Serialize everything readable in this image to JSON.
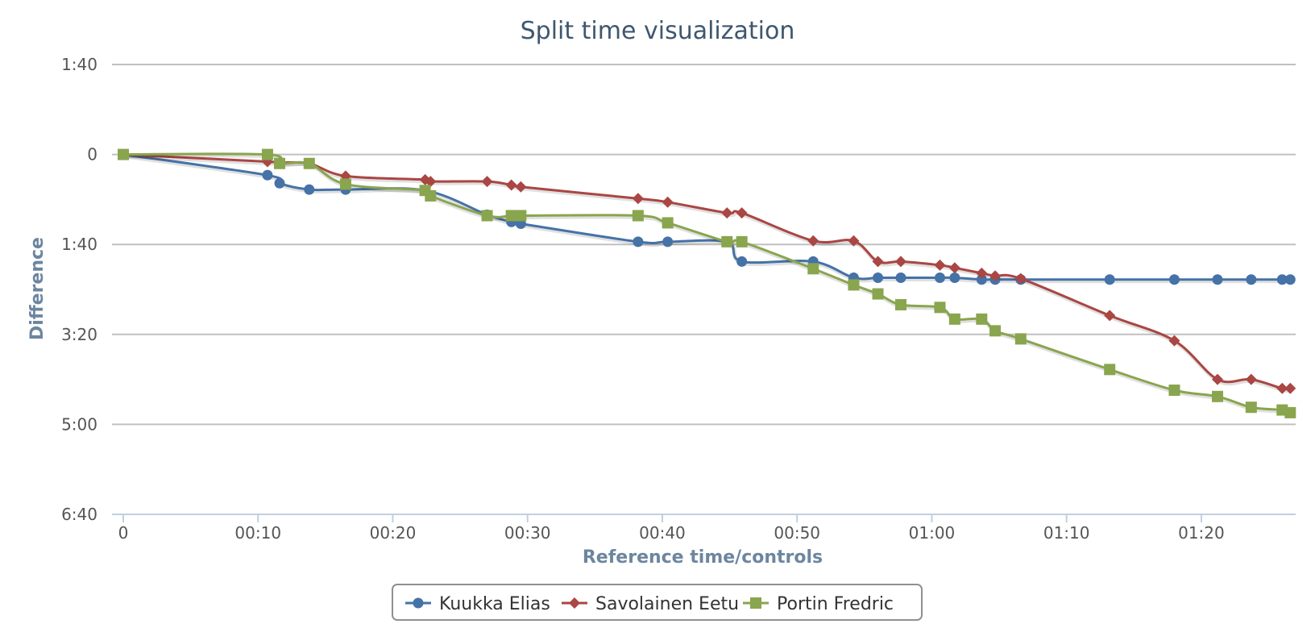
{
  "chart_data": {
    "type": "line",
    "title": "Split time visualization",
    "xlabel": "Reference time/controls",
    "ylabel": "Difference",
    "x_unit": "minutes",
    "y_unit": "seconds",
    "xlim": [
      0,
      87
    ],
    "ylim": [
      0,
      400
    ],
    "y_reversed": true,
    "grid": "horizontal",
    "legend_position": "bottom-center",
    "x_ticks": [
      {
        "value": 0,
        "label": "0"
      },
      {
        "value": 10,
        "label": "00:10"
      },
      {
        "value": 20,
        "label": "00:20"
      },
      {
        "value": 30,
        "label": "00:30"
      },
      {
        "value": 40,
        "label": "00:40"
      },
      {
        "value": 50,
        "label": "00:50"
      },
      {
        "value": 60,
        "label": "01:00"
      },
      {
        "value": 70,
        "label": "01:10"
      },
      {
        "value": 80,
        "label": "01:20"
      }
    ],
    "y_ticks": [
      {
        "value": -100,
        "label": "1:40"
      },
      {
        "value": 0,
        "label": "0"
      },
      {
        "value": 100,
        "label": "1:40"
      },
      {
        "value": 200,
        "label": "3:20"
      },
      {
        "value": 300,
        "label": "5:00"
      },
      {
        "value": 400,
        "label": "6:40"
      }
    ],
    "series": [
      {
        "name": "Kuukka Elias",
        "color": "#4572a7",
        "marker": "circle",
        "points": [
          [
            0,
            0
          ],
          [
            10.7,
            23
          ],
          [
            11.6,
            32
          ],
          [
            13.8,
            39
          ],
          [
            16.5,
            39
          ],
          [
            22.4,
            40
          ],
          [
            27,
            67
          ],
          [
            28.8,
            75
          ],
          [
            29.5,
            77
          ],
          [
            38.2,
            97
          ],
          [
            40.4,
            97
          ],
          [
            44.8,
            97
          ],
          [
            45.9,
            119
          ],
          [
            51.2,
            119
          ],
          [
            54.2,
            137
          ],
          [
            56,
            137
          ],
          [
            57.7,
            137
          ],
          [
            60.6,
            137
          ],
          [
            61.7,
            137
          ],
          [
            63.7,
            139
          ],
          [
            64.7,
            139
          ],
          [
            66.6,
            139
          ],
          [
            73.2,
            139
          ],
          [
            78,
            139
          ],
          [
            81.2,
            139
          ],
          [
            83.7,
            139
          ],
          [
            86,
            139
          ],
          [
            86.6,
            139
          ]
        ]
      },
      {
        "name": "Savolainen Eetu",
        "color": "#aa4643",
        "marker": "diamond",
        "points": [
          [
            0,
            0
          ],
          [
            10.7,
            8
          ],
          [
            11.6,
            9
          ],
          [
            13.8,
            10
          ],
          [
            16.5,
            24
          ],
          [
            22.4,
            28
          ],
          [
            22.8,
            30
          ],
          [
            27,
            30
          ],
          [
            28.8,
            34
          ],
          [
            29.5,
            36
          ],
          [
            38.2,
            49
          ],
          [
            40.4,
            53
          ],
          [
            44.8,
            65
          ],
          [
            45.9,
            65
          ],
          [
            51.2,
            96
          ],
          [
            54.2,
            96
          ],
          [
            56,
            119
          ],
          [
            57.7,
            119
          ],
          [
            60.6,
            123
          ],
          [
            61.7,
            126
          ],
          [
            63.7,
            132
          ],
          [
            64.7,
            135
          ],
          [
            66.6,
            138
          ],
          [
            73.2,
            179
          ],
          [
            78,
            207
          ],
          [
            81.2,
            250
          ],
          [
            83.7,
            250
          ],
          [
            86,
            260
          ],
          [
            86.6,
            260
          ]
        ]
      },
      {
        "name": "Portin Fredric",
        "color": "#89a54e",
        "marker": "square",
        "points": [
          [
            0,
            0
          ],
          [
            10.7,
            0
          ],
          [
            11.6,
            10
          ],
          [
            13.8,
            10
          ],
          [
            16.5,
            33
          ],
          [
            22.4,
            40
          ],
          [
            22.8,
            46
          ],
          [
            27,
            68
          ],
          [
            28.8,
            68
          ],
          [
            29.5,
            68
          ],
          [
            38.2,
            68
          ],
          [
            40.4,
            76
          ],
          [
            44.8,
            97
          ],
          [
            45.9,
            97
          ],
          [
            51.2,
            127
          ],
          [
            54.2,
            145
          ],
          [
            56,
            155
          ],
          [
            57.7,
            167
          ],
          [
            60.6,
            170
          ],
          [
            61.7,
            183
          ],
          [
            63.7,
            183
          ],
          [
            64.7,
            196
          ],
          [
            66.6,
            205
          ],
          [
            73.2,
            239
          ],
          [
            78,
            262
          ],
          [
            81.2,
            269
          ],
          [
            83.7,
            281
          ],
          [
            86,
            284
          ],
          [
            86.6,
            287
          ]
        ]
      }
    ]
  }
}
